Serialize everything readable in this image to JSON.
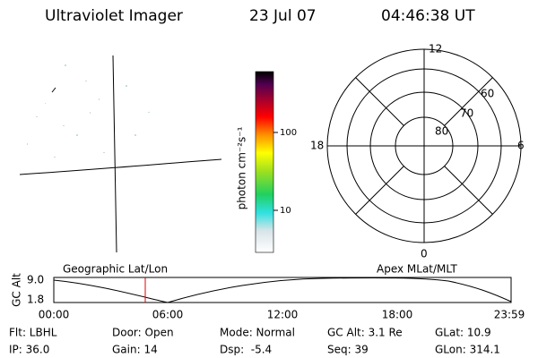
{
  "header": {
    "instrument": "Ultraviolet Imager",
    "date": "23 Jul 07",
    "time": "04:46:38 UT"
  },
  "colorbar": {
    "label": "photon cm⁻²s⁻¹",
    "ticks": [
      "100",
      "10"
    ]
  },
  "polar": {
    "hour_labels": [
      "12",
      "6",
      "0",
      "18"
    ],
    "lat_labels": [
      "60",
      "70",
      "80"
    ]
  },
  "altitude_strip": {
    "left_label": "Geographic Lat/Lon",
    "right_label": "Apex MLat/MLT",
    "y_label": "GC Alt",
    "y_ticks": [
      "9.0",
      "1.8"
    ],
    "x_ticks": [
      "00:00",
      "06:00",
      "12:00",
      "18:00",
      "23:59"
    ]
  },
  "info": {
    "rows": [
      [
        "Flt: LBHL",
        "Door: Open",
        "Mode: Normal",
        "GC Alt: 3.1 Re",
        "GLat: 10.9"
      ],
      [
        "IP: 36.0",
        "Gain: 14",
        "Dsp:  -5.4",
        "Seq: 39",
        "GLon: 314.1"
      ]
    ]
  }
}
